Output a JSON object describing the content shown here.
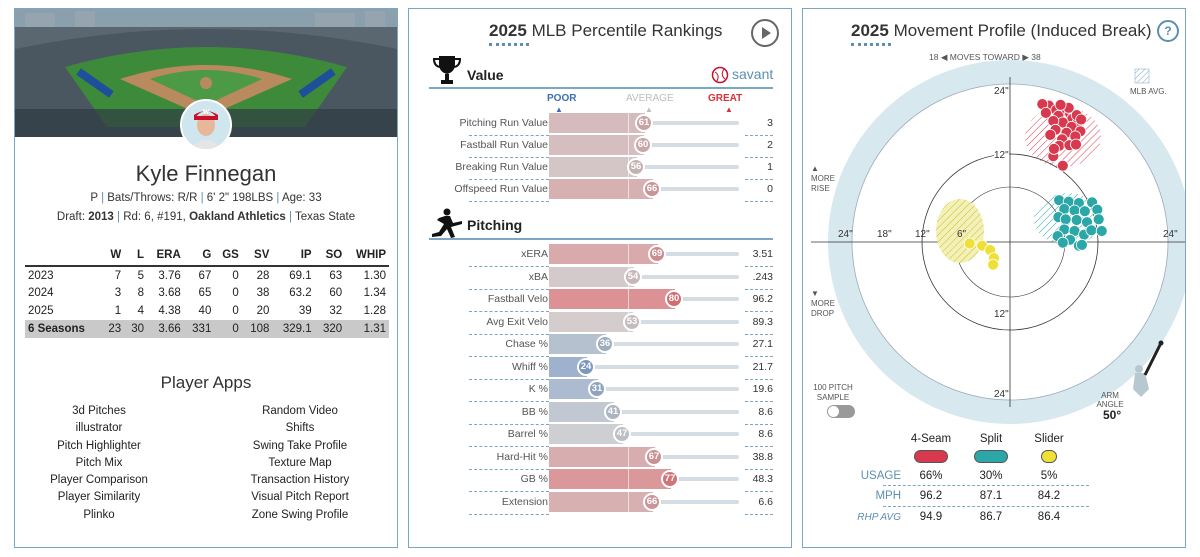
{
  "player": {
    "name": "Kyle Finnegan",
    "position": "P",
    "bats_throws": "Bats/Throws: R/R",
    "height": "6' 2\"",
    "weight": "198LBS",
    "age": "Age: 33",
    "draft_label": "Draft: ",
    "draft_year": "2013",
    "draft_detail": "Rd: 6, #191,",
    "draft_team": "Oakland Athletics",
    "college": "Texas State"
  },
  "stats": {
    "headers": [
      "",
      "W",
      "L",
      "ERA",
      "G",
      "GS",
      "SV",
      "IP",
      "SO",
      "WHIP"
    ],
    "rows": [
      [
        "2023",
        "7",
        "5",
        "3.76",
        "67",
        "0",
        "28",
        "69.1",
        "63",
        "1.30"
      ],
      [
        "2024",
        "3",
        "8",
        "3.68",
        "65",
        "0",
        "38",
        "63.2",
        "60",
        "1.34"
      ],
      [
        "2025",
        "1",
        "4",
        "4.38",
        "40",
        "0",
        "20",
        "39",
        "32",
        "1.28"
      ]
    ],
    "total": [
      "6 Seasons",
      "23",
      "30",
      "3.66",
      "331",
      "0",
      "108",
      "329.1",
      "320",
      "1.31"
    ]
  },
  "apps": {
    "title": "Player Apps",
    "left": [
      "3d Pitches",
      "illustrator",
      "Pitch Highlighter",
      "Pitch Mix",
      "Player Comparison",
      "Player Similarity",
      "Plinko"
    ],
    "right": [
      "Random Video",
      "Shifts",
      "Swing Take Profile",
      "Texture Map",
      "Transaction History",
      "Visual Pitch Report",
      "Zone Swing Profile"
    ]
  },
  "percentile": {
    "year": "2025",
    "title": "MLB Percentile Rankings",
    "savant": "savant",
    "scale": {
      "poor": "POOR",
      "average": "AVERAGE",
      "great": "GREAT"
    },
    "value_heading": "Value",
    "pitching_heading": "Pitching",
    "value_rows": [
      {
        "label": "Pitching Run Value",
        "pct": 61,
        "val": "3"
      },
      {
        "label": "Fastball Run Value",
        "pct": 60,
        "val": "2"
      },
      {
        "label": "Breaking Run Value",
        "pct": 56,
        "val": "1"
      },
      {
        "label": "Offspeed Run Value",
        "pct": 66,
        "val": "0"
      }
    ],
    "pitching_rows": [
      {
        "label": "xERA",
        "pct": 69,
        "val": "3.51"
      },
      {
        "label": "xBA",
        "pct": 54,
        "val": ".243"
      },
      {
        "label": "Fastball Velo",
        "pct": 80,
        "val": "96.2"
      },
      {
        "label": "Avg Exit Velo",
        "pct": 53,
        "val": "89.3"
      },
      {
        "label": "Chase %",
        "pct": 36,
        "val": "27.1"
      },
      {
        "label": "Whiff %",
        "pct": 24,
        "val": "21.7"
      },
      {
        "label": "K %",
        "pct": 31,
        "val": "19.6"
      },
      {
        "label": "BB %",
        "pct": 41,
        "val": "8.6"
      },
      {
        "label": "Barrel %",
        "pct": 47,
        "val": "8.6"
      },
      {
        "label": "Hard-Hit %",
        "pct": 67,
        "val": "38.8"
      },
      {
        "label": "GB %",
        "pct": 77,
        "val": "48.3"
      },
      {
        "label": "Extension",
        "pct": 66,
        "val": "6.6"
      }
    ]
  },
  "movement": {
    "year": "2025",
    "title": "Movement Profile (Induced Break)",
    "help": "?",
    "moves_toward": "MOVES TOWARD",
    "moves_left": "18",
    "moves_right": "38",
    "mlb_avg": "MLB AVG.",
    "more_rise": "MORE RISE",
    "more_drop": "MORE DROP",
    "ring_labels": {
      "top24": "24\"",
      "top12": "12\"",
      "bottom12": "12\"",
      "bottom24": "24\"",
      "left24": "24\"",
      "left18": "18\"",
      "left12": "12\"",
      "left6": "6\"",
      "right24": "24\""
    },
    "sample_label": "100 PITCH SAMPLE",
    "arm_angle_label": "ARM ANGLE",
    "arm_angle": "50°",
    "pitches": [
      {
        "name": "4-Seam",
        "usage": "66%",
        "mph": "96.2",
        "rhp_avg": "94.9",
        "color": "#d9394e"
      },
      {
        "name": "Split",
        "usage": "30%",
        "mph": "87.1",
        "rhp_avg": "86.7",
        "color": "#2aa7a6"
      },
      {
        "name": "Slider",
        "usage": "5%",
        "mph": "84.2",
        "rhp_avg": "86.4",
        "color": "#eee035"
      }
    ],
    "row_labels": {
      "usage": "USAGE",
      "mph": "MPH",
      "rhp_avg": "RHP AVG"
    }
  },
  "colors": {
    "accent": "#5c8fb0",
    "poor": "#3c6fb6",
    "average": "#bdbdbd",
    "great": "#d8323b"
  }
}
